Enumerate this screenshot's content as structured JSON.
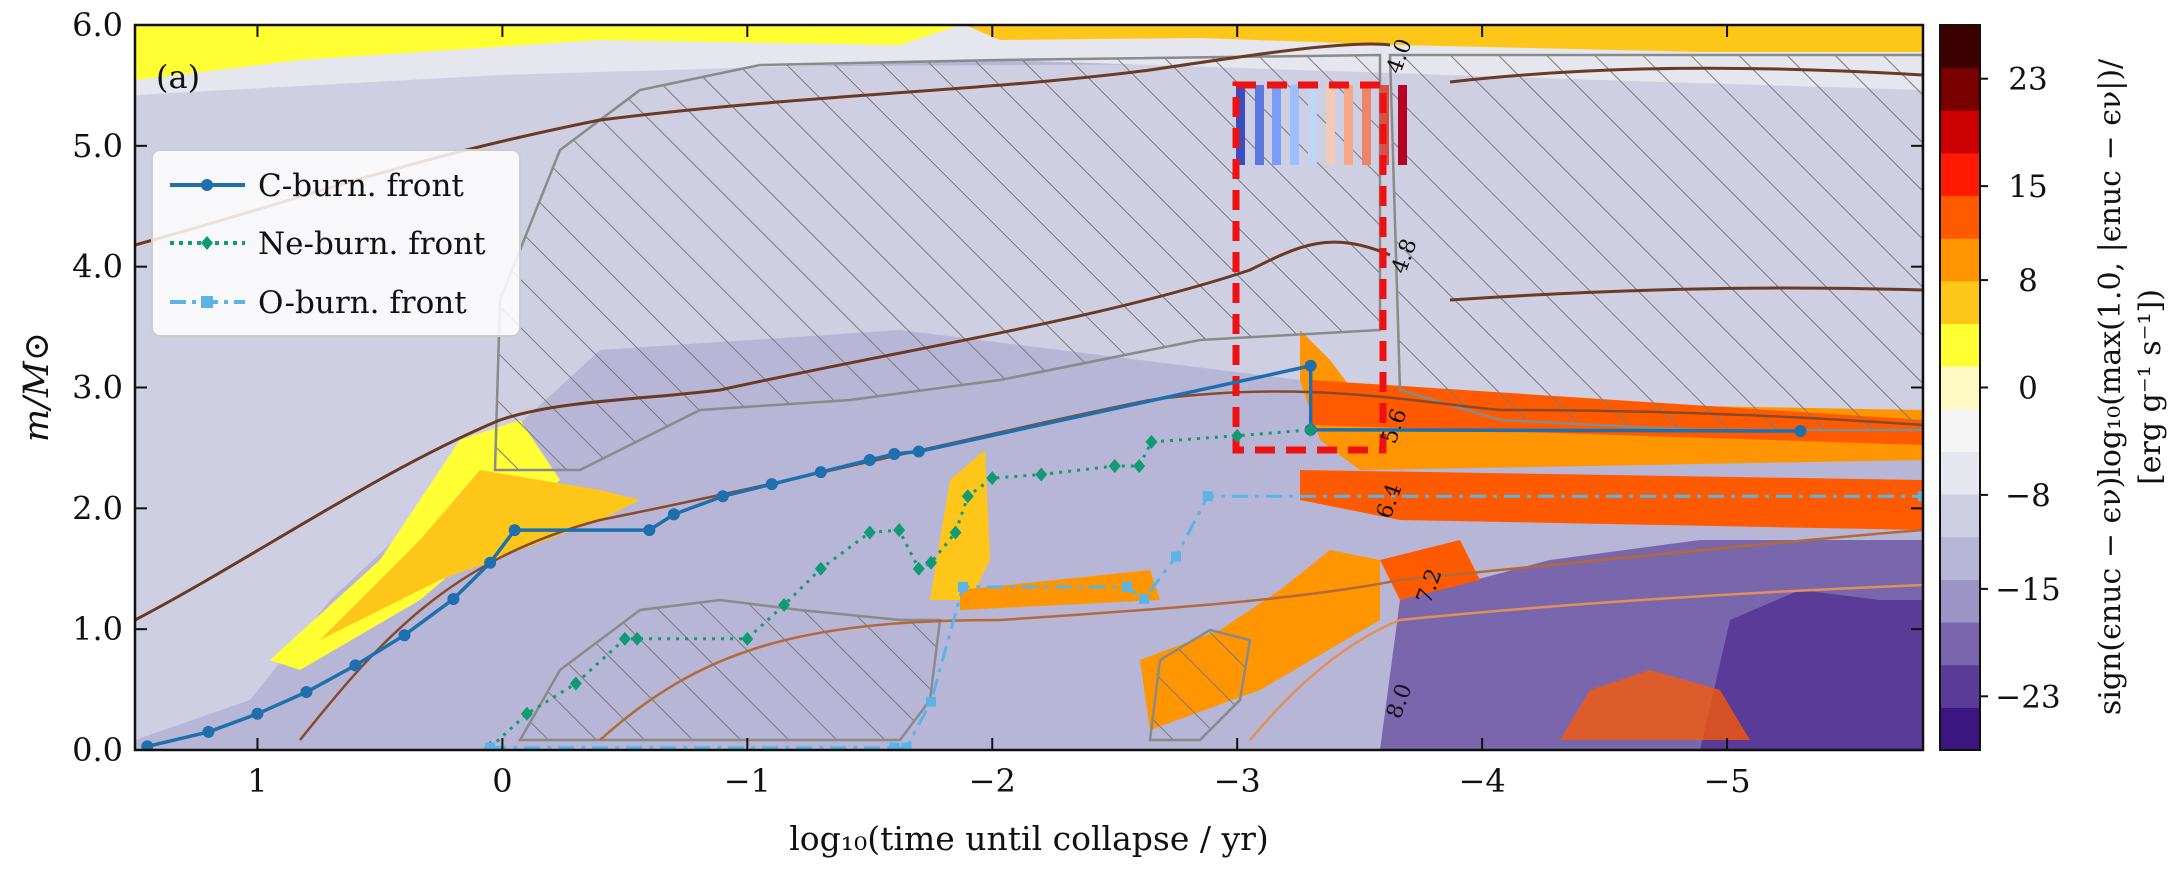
{
  "panel_label": "(a)",
  "colors": {
    "c_front": "#1f6fae",
    "ne_front": "#119a74",
    "o_front": "#5ab4e6",
    "hatch": "#7a7a7a",
    "box": "#ee1111",
    "contour": "#6b3a24",
    "bg_neg": "#dcdcec"
  },
  "chart_data": {
    "type": "line",
    "xlabel": "log₁₀(time until collapse / yr)",
    "ylabel": "m/M⊙",
    "xlim": [
      1.5,
      -5.8
    ],
    "ylim": [
      0.0,
      6.0
    ],
    "x_ticks": [
      1,
      0,
      -1,
      -2,
      -3,
      -4,
      -5
    ],
    "x_tick_labels": [
      "1",
      "0",
      "−1",
      "−2",
      "−3",
      "−4",
      "−5"
    ],
    "y_ticks": [
      0,
      1,
      2,
      3,
      4,
      5,
      6
    ],
    "y_tick_labels": [
      "0.0",
      "1.0",
      "2.0",
      "3.0",
      "4.0",
      "5.0",
      "6.0"
    ],
    "legend_position": "upper-left",
    "series": [
      {
        "name": "C-burn. front",
        "style": "solid",
        "marker": "circle",
        "points": [
          [
            1.45,
            0.03
          ],
          [
            1.2,
            0.15
          ],
          [
            1.0,
            0.3
          ],
          [
            0.8,
            0.48
          ],
          [
            0.6,
            0.7
          ],
          [
            0.4,
            0.95
          ],
          [
            0.2,
            1.25
          ],
          [
            0.05,
            1.55
          ],
          [
            -0.05,
            1.82
          ],
          [
            -0.6,
            1.82
          ],
          [
            -0.7,
            1.95
          ],
          [
            -0.9,
            2.1
          ],
          [
            -1.1,
            2.2
          ],
          [
            -1.3,
            2.3
          ],
          [
            -1.5,
            2.4
          ],
          [
            -1.6,
            2.45
          ],
          [
            -1.7,
            2.47
          ],
          [
            -3.3,
            3.18
          ],
          [
            -3.3,
            2.65
          ],
          [
            -5.3,
            2.64
          ]
        ]
      },
      {
        "name": "Ne-burn. front",
        "style": "dotted",
        "marker": "diamond",
        "points": [
          [
            0.05,
            0.02
          ],
          [
            -0.1,
            0.3
          ],
          [
            -0.3,
            0.55
          ],
          [
            -0.5,
            0.92
          ],
          [
            -0.55,
            0.92
          ],
          [
            -1.0,
            0.92
          ],
          [
            -1.15,
            1.2
          ],
          [
            -1.3,
            1.5
          ],
          [
            -1.5,
            1.8
          ],
          [
            -1.62,
            1.82
          ],
          [
            -1.7,
            1.5
          ],
          [
            -1.75,
            1.55
          ],
          [
            -1.85,
            1.8
          ],
          [
            -1.9,
            2.1
          ],
          [
            -2.0,
            2.25
          ],
          [
            -2.2,
            2.28
          ],
          [
            -2.5,
            2.35
          ],
          [
            -2.6,
            2.35
          ],
          [
            -2.65,
            2.55
          ],
          [
            -3.0,
            2.6
          ],
          [
            -3.3,
            2.65
          ]
        ]
      },
      {
        "name": "O-burn. front",
        "style": "dashdot",
        "marker": "square",
        "points": [
          [
            0.05,
            0.02
          ],
          [
            -1.6,
            0.02
          ],
          [
            -1.65,
            0.02
          ],
          [
            -1.75,
            0.4
          ],
          [
            -1.88,
            1.35
          ],
          [
            -2.55,
            1.35
          ],
          [
            -2.62,
            1.25
          ],
          [
            -2.75,
            1.6
          ],
          [
            -2.88,
            2.1
          ],
          [
            -5.8,
            2.1
          ]
        ]
      }
    ],
    "contour_labels": [
      "4.0",
      "4.8",
      "5.6",
      "6.4",
      "7.2",
      "8.0"
    ],
    "colorbar": {
      "label_lines": [
        "sign(ϵnuc − ϵν)log₁₀(max(1.0, |ϵnuc − ϵν|)/",
        "[erg g⁻¹ s⁻¹])"
      ],
      "min": -27,
      "max": 27,
      "ticks": [
        -23,
        -15,
        -8,
        0,
        8,
        15,
        23
      ],
      "tick_labels": [
        "−23",
        "−15",
        "−8",
        "0",
        "8",
        "15",
        "23"
      ],
      "colors": [
        "#3b1680",
        "#5b3b98",
        "#7a66ad",
        "#9c94c4",
        "#b7b6d6",
        "#cfcfe4",
        "#e6e6ef",
        "#f5f5f5",
        "#fff9c4",
        "#ffff33",
        "#ffc61a",
        "#ff9500",
        "#ff5a00",
        "#ff1a00",
        "#cc0000",
        "#7a0000",
        "#3d0000"
      ]
    }
  }
}
